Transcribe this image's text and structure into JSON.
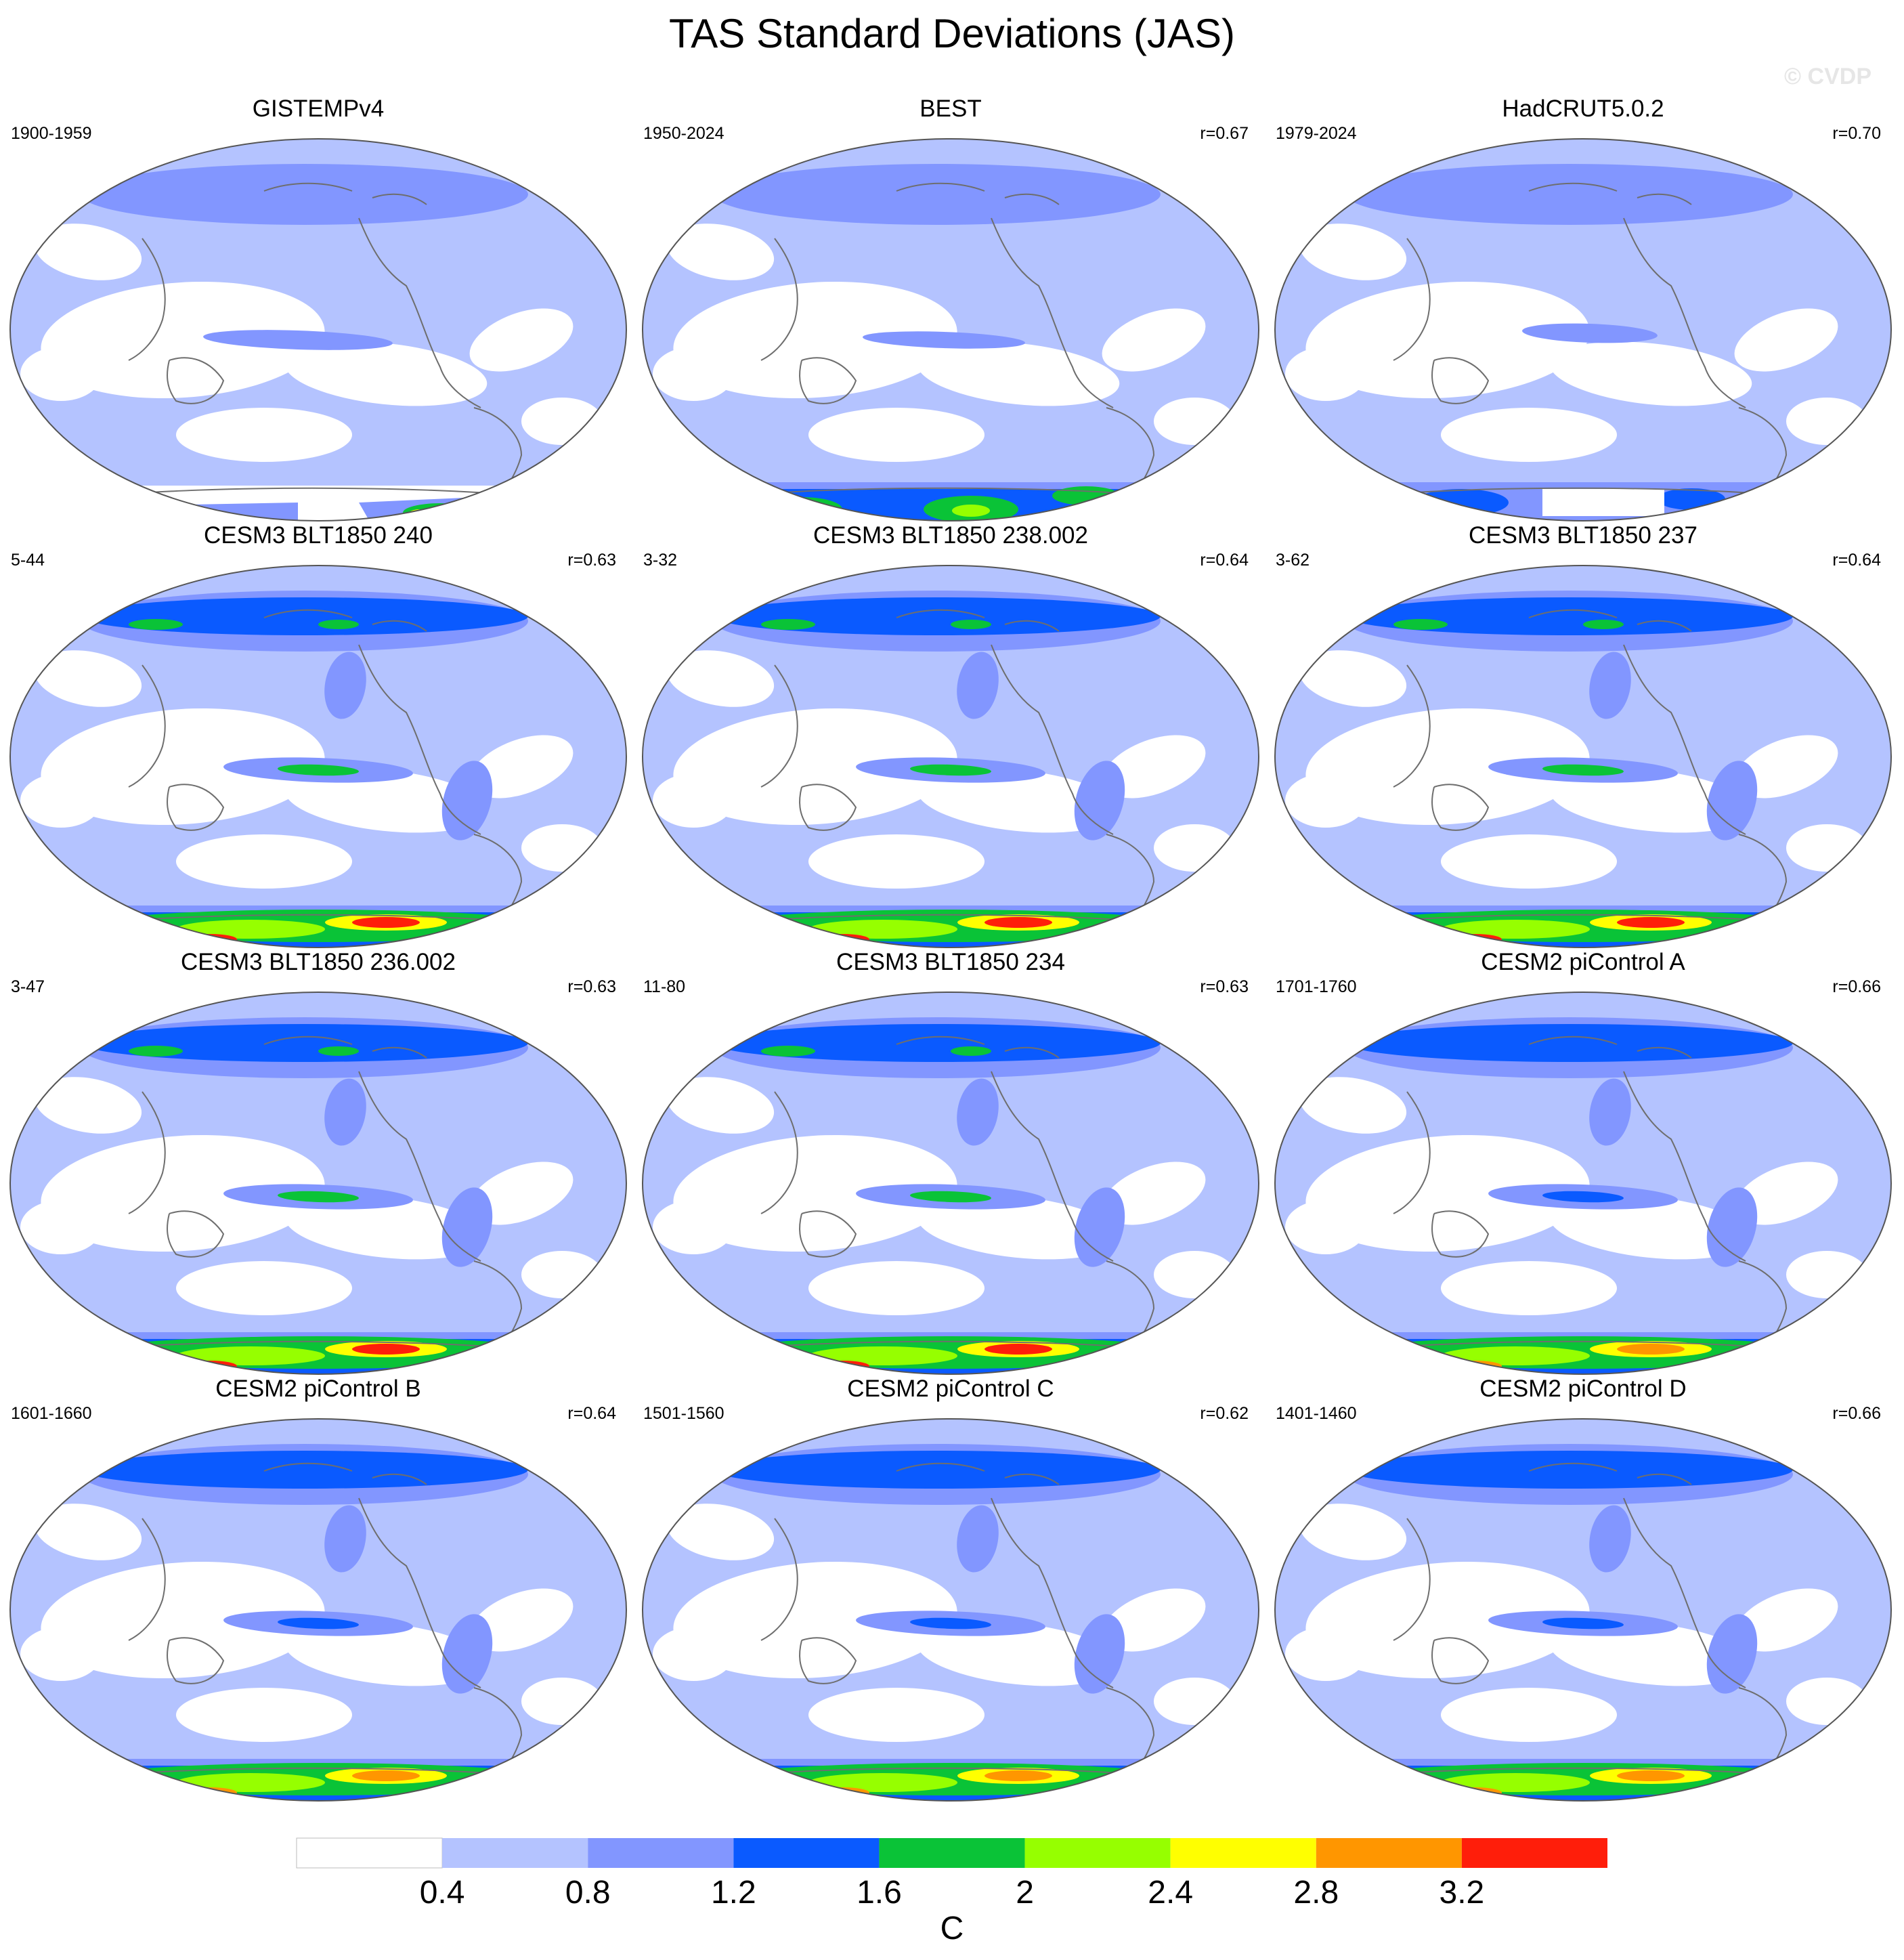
{
  "title": "TAS Standard Deviations (JAS)",
  "watermark": "© CVDP",
  "colorbar": {
    "colors": [
      "#ffffff",
      "#b4c3ff",
      "#8296ff",
      "#0a5aff",
      "#0ac337",
      "#96ff00",
      "#ffff00",
      "#ff9600",
      "#ff1e0a"
    ],
    "ticks": [
      "0.4",
      "0.8",
      "1.2",
      "1.6",
      "2",
      "2.4",
      "2.8",
      "3.2"
    ],
    "unit": "C"
  },
  "panels": [
    {
      "title": "GISTEMPv4",
      "period": "1900-1959",
      "corr": "",
      "variant": "obs1"
    },
    {
      "title": "BEST",
      "period": "1950-2024",
      "corr": "r=0.67",
      "variant": "obs2"
    },
    {
      "title": "HadCRUT5.0.2",
      "period": "1979-2024",
      "corr": "r=0.70",
      "variant": "obs3"
    },
    {
      "title": "CESM3 BLT1850 240",
      "period": "5-44",
      "corr": "r=0.63",
      "variant": "cesm3"
    },
    {
      "title": "CESM3 BLT1850 238.002",
      "period": "3-32",
      "corr": "r=0.64",
      "variant": "cesm3"
    },
    {
      "title": "CESM3 BLT1850 237",
      "period": "3-62",
      "corr": "r=0.64",
      "variant": "cesm3"
    },
    {
      "title": "CESM3 BLT1850 236.002",
      "period": "3-47",
      "corr": "r=0.63",
      "variant": "cesm3"
    },
    {
      "title": "CESM3 BLT1850 234",
      "period": "11-80",
      "corr": "r=0.63",
      "variant": "cesm3"
    },
    {
      "title": "CESM2 piControl A",
      "period": "1701-1760",
      "corr": "r=0.66",
      "variant": "cesm2"
    },
    {
      "title": "CESM2 piControl B",
      "period": "1601-1660",
      "corr": "r=0.64",
      "variant": "cesm2"
    },
    {
      "title": "CESM2 piControl C",
      "period": "1501-1560",
      "corr": "r=0.62",
      "variant": "cesm2"
    },
    {
      "title": "CESM2 piControl D",
      "period": "1401-1460",
      "corr": "r=0.66",
      "variant": "cesm2"
    }
  ]
}
